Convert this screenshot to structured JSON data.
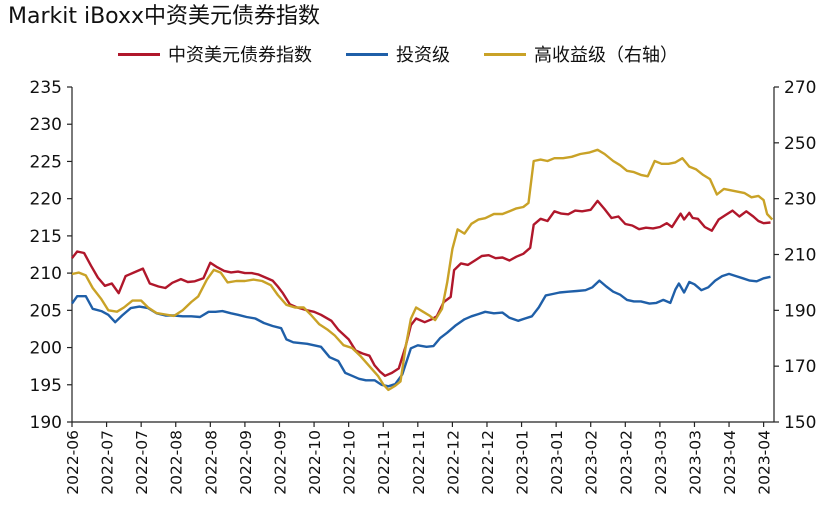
{
  "chart_data": {
    "type": "line",
    "title": "Markit iBoxx中资美元债券指数",
    "grid": false,
    "legend_position": "top",
    "left_axis": {
      "ylim": [
        190,
        235
      ],
      "ticks": [
        190,
        195,
        200,
        205,
        210,
        215,
        220,
        225,
        230,
        235
      ]
    },
    "right_axis": {
      "ylim": [
        150,
        270
      ],
      "ticks": [
        150,
        170,
        190,
        210,
        230,
        250,
        270
      ]
    },
    "x_ticks": [
      "2022-06",
      "2022-07",
      "2022-07",
      "2022-08",
      "2022-08",
      "2022-09",
      "2022-09",
      "2022-10",
      "2022-10",
      "2022-11",
      "2022-11",
      "2022-12",
      "2022-12",
      "2023-01",
      "2023-01",
      "2023-02",
      "2023-02",
      "2023-03",
      "2023-03",
      "2023-04",
      "2023-04"
    ],
    "x_tick_positions": [
      0,
      1,
      2,
      3,
      4,
      5,
      6,
      7,
      8,
      9,
      10,
      11,
      12,
      13,
      14,
      15,
      16,
      17,
      18,
      19,
      20
    ],
    "x_range": [
      0,
      20.3
    ],
    "series": [
      {
        "name": "中资美元债券指数",
        "axis": "left",
        "color": "#b0172b",
        "points": [
          [
            0,
            212.0
          ],
          [
            0.15,
            212.9
          ],
          [
            0.35,
            212.7
          ],
          [
            0.55,
            211.0
          ],
          [
            0.75,
            209.4
          ],
          [
            0.95,
            208.3
          ],
          [
            1.15,
            208.6
          ],
          [
            1.35,
            207.3
          ],
          [
            1.55,
            209.6
          ],
          [
            1.8,
            210.1
          ],
          [
            2.05,
            210.6
          ],
          [
            2.25,
            208.6
          ],
          [
            2.5,
            208.2
          ],
          [
            2.7,
            208.0
          ],
          [
            2.9,
            208.7
          ],
          [
            3.15,
            209.2
          ],
          [
            3.35,
            208.8
          ],
          [
            3.55,
            208.9
          ],
          [
            3.8,
            209.3
          ],
          [
            4.0,
            211.4
          ],
          [
            4.2,
            210.8
          ],
          [
            4.4,
            210.3
          ],
          [
            4.6,
            210.1
          ],
          [
            4.8,
            210.2
          ],
          [
            5.0,
            210.0
          ],
          [
            5.2,
            210.0
          ],
          [
            5.4,
            209.8
          ],
          [
            5.6,
            209.4
          ],
          [
            5.8,
            209.0
          ],
          [
            5.95,
            208.2
          ],
          [
            6.1,
            207.3
          ],
          [
            6.3,
            205.8
          ],
          [
            6.5,
            205.4
          ],
          [
            6.8,
            205.0
          ],
          [
            7.0,
            204.8
          ],
          [
            7.2,
            204.4
          ],
          [
            7.5,
            203.6
          ],
          [
            7.7,
            202.4
          ],
          [
            8.0,
            201.1
          ],
          [
            8.2,
            199.6
          ],
          [
            8.4,
            199.2
          ],
          [
            8.6,
            198.9
          ],
          [
            8.75,
            197.6
          ],
          [
            8.9,
            196.8
          ],
          [
            9.05,
            196.2
          ],
          [
            9.25,
            196.6
          ],
          [
            9.45,
            197.2
          ],
          [
            9.65,
            200.2
          ],
          [
            9.8,
            203.0
          ],
          [
            9.95,
            203.9
          ],
          [
            10.2,
            203.4
          ],
          [
            10.4,
            203.8
          ],
          [
            10.55,
            204.2
          ],
          [
            10.75,
            206.1
          ],
          [
            10.95,
            206.8
          ],
          [
            11.05,
            210.4
          ],
          [
            11.25,
            211.3
          ],
          [
            11.45,
            211.1
          ],
          [
            11.65,
            211.7
          ],
          [
            11.85,
            212.3
          ],
          [
            12.05,
            212.4
          ],
          [
            12.25,
            212.0
          ],
          [
            12.45,
            212.1
          ],
          [
            12.65,
            211.7
          ],
          [
            12.85,
            212.2
          ],
          [
            13.05,
            212.6
          ],
          [
            13.25,
            213.4
          ],
          [
            13.35,
            216.5
          ],
          [
            13.55,
            217.3
          ],
          [
            13.75,
            217.0
          ],
          [
            13.95,
            218.3
          ],
          [
            14.15,
            218.0
          ],
          [
            14.35,
            217.9
          ],
          [
            14.55,
            218.4
          ],
          [
            14.75,
            218.3
          ],
          [
            15.0,
            218.5
          ],
          [
            15.2,
            219.7
          ],
          [
            15.4,
            218.6
          ],
          [
            15.6,
            217.4
          ],
          [
            15.8,
            217.6
          ],
          [
            16.0,
            216.6
          ],
          [
            16.2,
            216.4
          ],
          [
            16.4,
            215.9
          ],
          [
            16.6,
            216.1
          ],
          [
            16.8,
            216.0
          ],
          [
            17.0,
            216.2
          ],
          [
            17.2,
            216.7
          ],
          [
            17.35,
            216.2
          ],
          [
            17.5,
            217.3
          ],
          [
            17.6,
            218.0
          ],
          [
            17.7,
            217.2
          ],
          [
            17.85,
            218.1
          ],
          [
            17.95,
            217.4
          ],
          [
            18.1,
            217.3
          ],
          [
            18.3,
            216.2
          ],
          [
            18.5,
            215.7
          ],
          [
            18.7,
            217.2
          ],
          [
            18.9,
            217.8
          ],
          [
            19.1,
            218.4
          ],
          [
            19.3,
            217.6
          ],
          [
            19.5,
            218.3
          ],
          [
            19.7,
            217.6
          ],
          [
            19.85,
            217.0
          ],
          [
            20.0,
            216.7
          ],
          [
            20.2,
            216.8
          ]
        ]
      },
      {
        "name": "投资级",
        "axis": "left",
        "color": "#1f5fa8",
        "points": [
          [
            0,
            205.9
          ],
          [
            0.15,
            206.9
          ],
          [
            0.4,
            206.9
          ],
          [
            0.6,
            205.2
          ],
          [
            0.85,
            204.9
          ],
          [
            1.05,
            204.4
          ],
          [
            1.25,
            203.4
          ],
          [
            1.45,
            204.3
          ],
          [
            1.7,
            205.3
          ],
          [
            1.95,
            205.5
          ],
          [
            2.2,
            205.3
          ],
          [
            2.45,
            204.6
          ],
          [
            2.7,
            204.3
          ],
          [
            2.95,
            204.3
          ],
          [
            3.2,
            204.2
          ],
          [
            3.45,
            204.2
          ],
          [
            3.7,
            204.1
          ],
          [
            3.95,
            204.8
          ],
          [
            4.15,
            204.8
          ],
          [
            4.35,
            204.9
          ],
          [
            4.6,
            204.6
          ],
          [
            4.8,
            204.4
          ],
          [
            5.05,
            204.1
          ],
          [
            5.3,
            203.9
          ],
          [
            5.55,
            203.3
          ],
          [
            5.8,
            202.9
          ],
          [
            6.05,
            202.6
          ],
          [
            6.2,
            201.1
          ],
          [
            6.4,
            200.7
          ],
          [
            6.6,
            200.6
          ],
          [
            6.8,
            200.5
          ],
          [
            7.0,
            200.3
          ],
          [
            7.2,
            200.1
          ],
          [
            7.45,
            198.7
          ],
          [
            7.7,
            198.2
          ],
          [
            7.9,
            196.6
          ],
          [
            8.1,
            196.2
          ],
          [
            8.3,
            195.8
          ],
          [
            8.5,
            195.6
          ],
          [
            8.75,
            195.6
          ],
          [
            8.95,
            195.0
          ],
          [
            9.15,
            194.8
          ],
          [
            9.35,
            195.1
          ],
          [
            9.55,
            196.4
          ],
          [
            9.8,
            199.9
          ],
          [
            10.0,
            200.3
          ],
          [
            10.25,
            200.1
          ],
          [
            10.45,
            200.2
          ],
          [
            10.65,
            201.3
          ],
          [
            10.85,
            202.0
          ],
          [
            11.1,
            203.0
          ],
          [
            11.35,
            203.8
          ],
          [
            11.55,
            204.2
          ],
          [
            11.75,
            204.5
          ],
          [
            11.95,
            204.8
          ],
          [
            12.2,
            204.6
          ],
          [
            12.45,
            204.7
          ],
          [
            12.65,
            204.0
          ],
          [
            12.9,
            203.6
          ],
          [
            13.1,
            203.9
          ],
          [
            13.3,
            204.2
          ],
          [
            13.5,
            205.4
          ],
          [
            13.7,
            207.0
          ],
          [
            13.9,
            207.2
          ],
          [
            14.1,
            207.4
          ],
          [
            14.35,
            207.5
          ],
          [
            14.6,
            207.6
          ],
          [
            14.85,
            207.7
          ],
          [
            15.05,
            208.1
          ],
          [
            15.25,
            209.0
          ],
          [
            15.45,
            208.2
          ],
          [
            15.65,
            207.5
          ],
          [
            15.85,
            207.1
          ],
          [
            16.05,
            206.4
          ],
          [
            16.25,
            206.2
          ],
          [
            16.45,
            206.2
          ],
          [
            16.7,
            205.9
          ],
          [
            16.9,
            206.0
          ],
          [
            17.1,
            206.4
          ],
          [
            17.3,
            206.0
          ],
          [
            17.45,
            207.8
          ],
          [
            17.55,
            208.6
          ],
          [
            17.7,
            207.4
          ],
          [
            17.85,
            208.8
          ],
          [
            18.0,
            208.5
          ],
          [
            18.2,
            207.7
          ],
          [
            18.4,
            208.1
          ],
          [
            18.6,
            209.0
          ],
          [
            18.8,
            209.6
          ],
          [
            19.0,
            209.9
          ],
          [
            19.2,
            209.6
          ],
          [
            19.4,
            209.3
          ],
          [
            19.6,
            209.0
          ],
          [
            19.8,
            208.9
          ],
          [
            20.0,
            209.3
          ],
          [
            20.2,
            209.5
          ]
        ]
      },
      {
        "name": "高收益级（右轴）",
        "axis": "right",
        "color": "#c9a227",
        "points": [
          [
            0,
            203.0
          ],
          [
            0.2,
            203.5
          ],
          [
            0.4,
            202.5
          ],
          [
            0.6,
            198.0
          ],
          [
            0.85,
            194.0
          ],
          [
            1.05,
            190.0
          ],
          [
            1.3,
            189.5
          ],
          [
            1.5,
            191.0
          ],
          [
            1.75,
            193.5
          ],
          [
            2.0,
            193.5
          ],
          [
            2.2,
            191.0
          ],
          [
            2.45,
            189.0
          ],
          [
            2.7,
            188.5
          ],
          [
            2.95,
            188.0
          ],
          [
            3.2,
            190.0
          ],
          [
            3.45,
            193.0
          ],
          [
            3.65,
            195.0
          ],
          [
            3.9,
            201.0
          ],
          [
            4.1,
            204.5
          ],
          [
            4.3,
            203.5
          ],
          [
            4.5,
            200.0
          ],
          [
            4.75,
            200.5
          ],
          [
            5.0,
            200.5
          ],
          [
            5.25,
            201.0
          ],
          [
            5.5,
            200.5
          ],
          [
            5.75,
            199.0
          ],
          [
            5.95,
            195.5
          ],
          [
            6.2,
            192.0
          ],
          [
            6.45,
            191.0
          ],
          [
            6.7,
            191.0
          ],
          [
            6.9,
            188.5
          ],
          [
            7.15,
            185.0
          ],
          [
            7.4,
            183.0
          ],
          [
            7.6,
            181.0
          ],
          [
            7.85,
            177.5
          ],
          [
            8.1,
            176.5
          ],
          [
            8.35,
            173.5
          ],
          [
            8.6,
            170.0
          ],
          [
            8.85,
            166.5
          ],
          [
            9.0,
            163.5
          ],
          [
            9.15,
            161.5
          ],
          [
            9.35,
            163.0
          ],
          [
            9.5,
            164.5
          ],
          [
            9.65,
            177.0
          ],
          [
            9.8,
            187.0
          ],
          [
            9.95,
            191.0
          ],
          [
            10.15,
            189.5
          ],
          [
            10.35,
            188.0
          ],
          [
            10.5,
            186.5
          ],
          [
            10.7,
            190.5
          ],
          [
            10.85,
            200.0
          ],
          [
            11.0,
            212.0
          ],
          [
            11.15,
            219.0
          ],
          [
            11.35,
            217.5
          ],
          [
            11.55,
            221.0
          ],
          [
            11.75,
            222.5
          ],
          [
            11.95,
            223.0
          ],
          [
            12.2,
            224.5
          ],
          [
            12.45,
            224.5
          ],
          [
            12.65,
            225.5
          ],
          [
            12.85,
            226.5
          ],
          [
            13.05,
            227.0
          ],
          [
            13.2,
            228.5
          ],
          [
            13.35,
            243.5
          ],
          [
            13.55,
            244.0
          ],
          [
            13.75,
            243.5
          ],
          [
            13.95,
            244.5
          ],
          [
            14.2,
            244.5
          ],
          [
            14.45,
            245.0
          ],
          [
            14.7,
            246.0
          ],
          [
            14.95,
            246.5
          ],
          [
            15.2,
            247.5
          ],
          [
            15.4,
            246.0
          ],
          [
            15.65,
            243.5
          ],
          [
            15.85,
            242.0
          ],
          [
            16.05,
            240.0
          ],
          [
            16.25,
            239.5
          ],
          [
            16.45,
            238.5
          ],
          [
            16.65,
            238.0
          ],
          [
            16.85,
            243.5
          ],
          [
            17.05,
            242.5
          ],
          [
            17.25,
            242.5
          ],
          [
            17.45,
            243.0
          ],
          [
            17.65,
            244.5
          ],
          [
            17.85,
            241.5
          ],
          [
            18.05,
            240.5
          ],
          [
            18.25,
            238.5
          ],
          [
            18.45,
            237.0
          ],
          [
            18.65,
            231.5
          ],
          [
            18.85,
            233.5
          ],
          [
            19.05,
            233.0
          ],
          [
            19.25,
            232.5
          ],
          [
            19.45,
            232.0
          ],
          [
            19.65,
            230.5
          ],
          [
            19.85,
            231.0
          ],
          [
            20.0,
            229.5
          ],
          [
            20.1,
            224.5
          ],
          [
            20.25,
            222.5
          ]
        ]
      }
    ]
  }
}
